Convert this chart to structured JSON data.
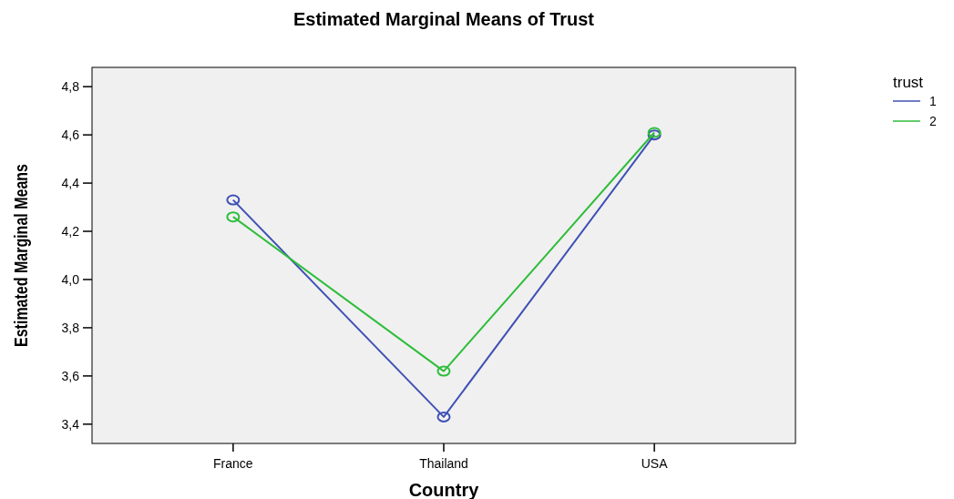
{
  "chart_data": {
    "type": "line",
    "title": "Estimated Marginal Means of Trust",
    "xlabel": "Country",
    "ylabel": "Estimated Marginal Means",
    "legend_title": "trust",
    "categories": [
      "France",
      "Thailand",
      "USA"
    ],
    "series": [
      {
        "name": "1",
        "color": "#3f51b5",
        "values": [
          4.33,
          3.43,
          4.6
        ]
      },
      {
        "name": "2",
        "color": "#2ebd3a",
        "values": [
          4.26,
          3.62,
          4.61
        ]
      }
    ],
    "ylim": [
      3.32,
      4.88
    ],
    "yticks": [
      {
        "value": 3.4,
        "label": "3,4"
      },
      {
        "value": 3.6,
        "label": "3,6"
      },
      {
        "value": 3.8,
        "label": "3,8"
      },
      {
        "value": 4.0,
        "label": "4,0"
      },
      {
        "value": 4.2,
        "label": "4,2"
      },
      {
        "value": 4.4,
        "label": "4,4"
      },
      {
        "value": 4.6,
        "label": "4,6"
      },
      {
        "value": 4.8,
        "label": "4,8"
      }
    ],
    "grid": false,
    "legend": "top right",
    "marker": "circle",
    "line_style": "solid"
  }
}
